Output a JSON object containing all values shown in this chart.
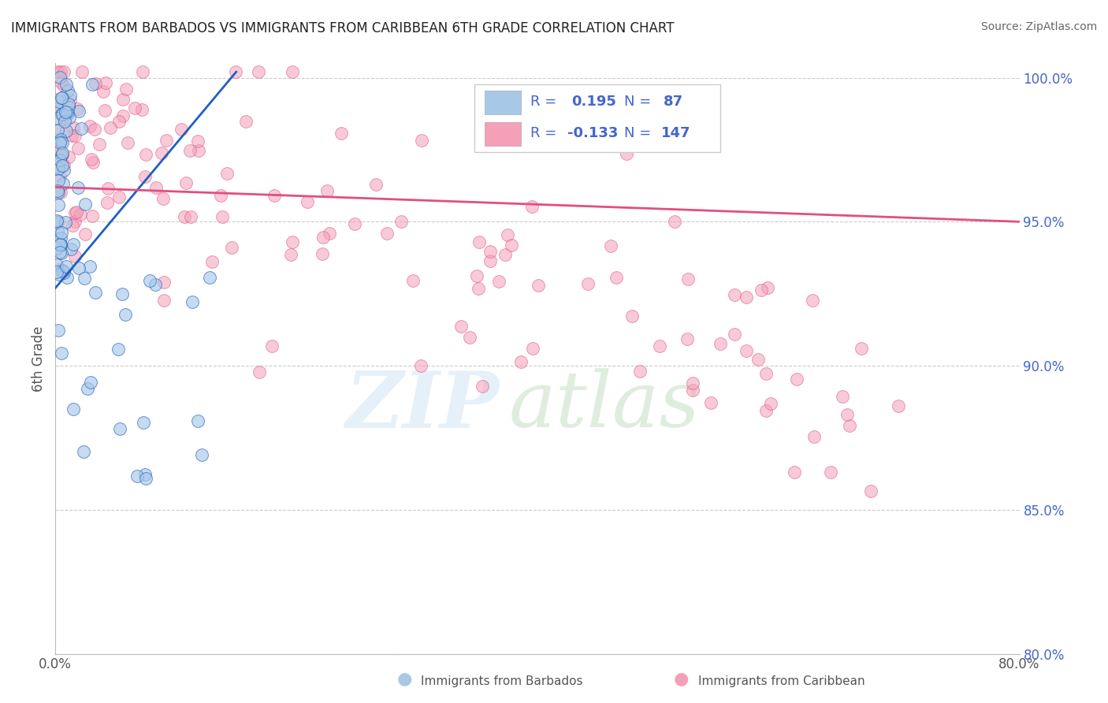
{
  "title": "IMMIGRANTS FROM BARBADOS VS IMMIGRANTS FROM CARIBBEAN 6TH GRADE CORRELATION CHART",
  "source": "Source: ZipAtlas.com",
  "ylabel": "6th Grade",
  "xmin": 0.0,
  "xmax": 0.8,
  "ymin": 0.8,
  "ymax": 1.005,
  "color_blue": "#a8c8e8",
  "color_pink": "#f4a0b8",
  "color_blue_line": "#2060c0",
  "color_pink_line": "#e05080",
  "title_color": "#222222",
  "source_color": "#666666",
  "axis_tick_color": "#4466cc",
  "blue_r": 0.195,
  "blue_n": 87,
  "pink_r": -0.133,
  "pink_n": 147,
  "blue_line_x0": 0.0,
  "blue_line_y0": 0.927,
  "blue_line_x1": 0.15,
  "blue_line_y1": 1.002,
  "pink_line_x0": 0.0,
  "pink_line_y0": 0.962,
  "pink_line_x1": 0.8,
  "pink_line_y1": 0.95
}
